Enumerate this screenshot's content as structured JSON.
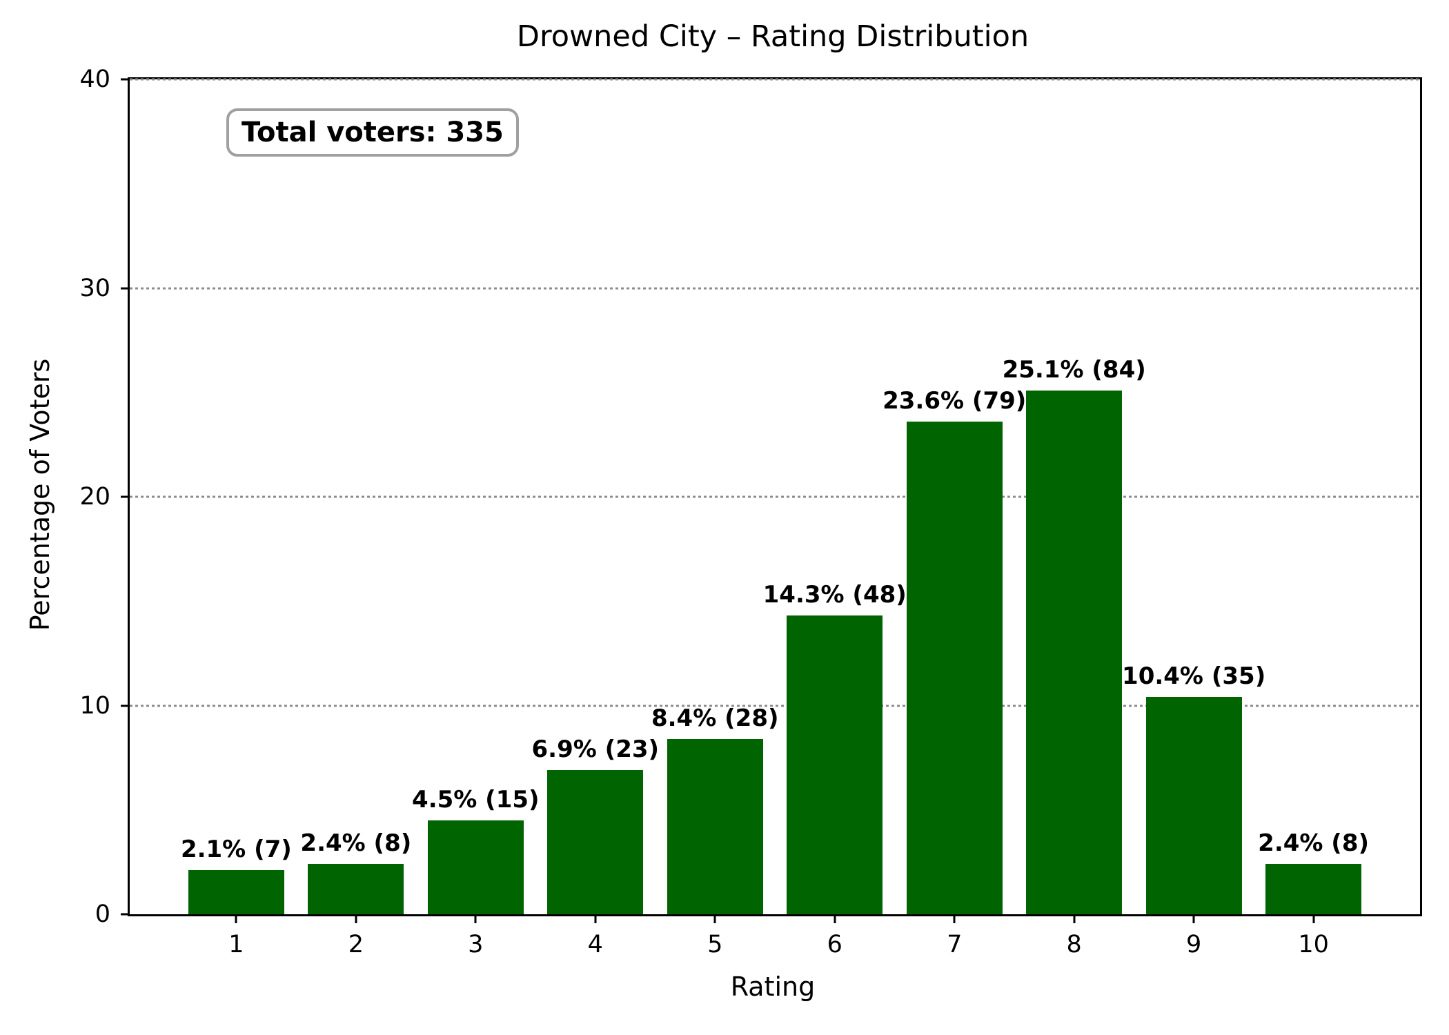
{
  "annotation": {
    "label": "Total voters: 335"
  },
  "chart_data": {
    "type": "bar",
    "title": "Drowned City – Rating Distribution",
    "xlabel": "Rating",
    "ylabel": "Percentage of Voters",
    "categories": [
      "1",
      "2",
      "3",
      "4",
      "5",
      "6",
      "7",
      "8",
      "9",
      "10"
    ],
    "x": [
      1,
      2,
      3,
      4,
      5,
      6,
      7,
      8,
      9,
      10
    ],
    "values": [
      2.1,
      2.4,
      4.5,
      6.9,
      8.4,
      14.3,
      23.6,
      25.1,
      10.4,
      2.4
    ],
    "counts": [
      7,
      8,
      15,
      23,
      28,
      48,
      79,
      84,
      35,
      8
    ],
    "bar_labels": [
      "2.1% (7)",
      "2.4% (8)",
      "4.5% (15)",
      "6.9% (23)",
      "8.4% (28)",
      "14.3% (48)",
      "23.6% (79)",
      "25.1% (84)",
      "10.4% (35)",
      "2.4% (8)"
    ],
    "total_voters": 335,
    "ylim": [
      0,
      40
    ],
    "xlim": [
      0.11,
      10.89
    ],
    "yticks": [
      0,
      10,
      20,
      30,
      40
    ],
    "bar_width_units": 0.8,
    "grid": "horizontal dotted at 10, 20, 30, 40",
    "legend": "none",
    "bar_color": "#006400",
    "grid_color": "#8c8c8c",
    "spine_color": "#000000",
    "background_color": "#ffffff"
  }
}
